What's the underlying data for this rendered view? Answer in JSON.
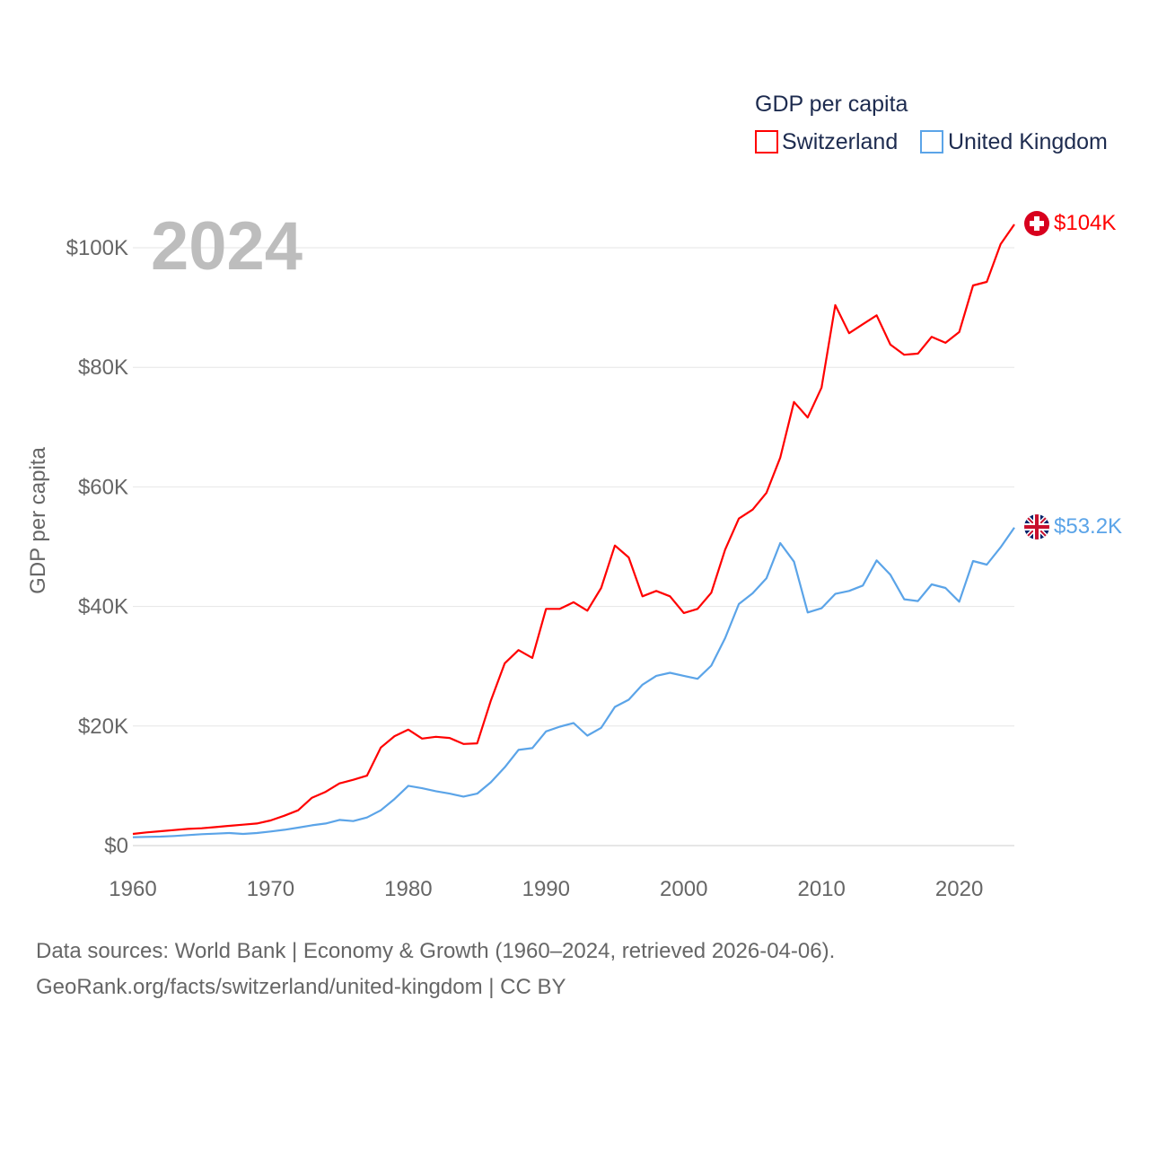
{
  "chart_data": {
    "type": "line",
    "title": "",
    "ylabel": "GDP per capita",
    "xlabel": "",
    "year_label": "2024",
    "legend_title": "GDP per capita",
    "legend_position": "top-right",
    "xlim": [
      1960,
      2024
    ],
    "ylim": [
      0,
      100000
    ],
    "x_ticks": [
      1960,
      1970,
      1980,
      1990,
      2000,
      2010,
      2020
    ],
    "x_tick_labels": [
      "1960",
      "1970",
      "1980",
      "1990",
      "2000",
      "2010",
      "2020"
    ],
    "y_ticks": [
      0,
      20000,
      40000,
      60000,
      80000,
      100000
    ],
    "y_tick_labels": [
      "$0",
      "$20K",
      "$40K",
      "$60K",
      "$80K",
      "$100K"
    ],
    "grid": true,
    "x": [
      1960,
      1961,
      1962,
      1963,
      1964,
      1965,
      1966,
      1967,
      1968,
      1969,
      1970,
      1971,
      1972,
      1973,
      1974,
      1975,
      1976,
      1977,
      1978,
      1979,
      1980,
      1981,
      1982,
      1983,
      1984,
      1985,
      1986,
      1987,
      1988,
      1989,
      1990,
      1991,
      1992,
      1993,
      1994,
      1995,
      1996,
      1997,
      1998,
      1999,
      2000,
      2001,
      2002,
      2003,
      2004,
      2005,
      2006,
      2007,
      2008,
      2009,
      2010,
      2011,
      2012,
      2013,
      2014,
      2015,
      2016,
      2017,
      2018,
      2019,
      2020,
      2021,
      2022,
      2023,
      2024
    ],
    "series": [
      {
        "name": "Switzerland",
        "color": "#ff0000",
        "end_label": "$104K",
        "flag": "swiss-flag",
        "values": [
          1950,
          2200,
          2400,
          2600,
          2800,
          2900,
          3100,
          3300,
          3500,
          3700,
          4200,
          5000,
          5900,
          8000,
          9000,
          10400,
          11000,
          11700,
          16400,
          18300,
          19400,
          17900,
          18200,
          18000,
          17000,
          17100,
          24300,
          30500,
          32700,
          31400,
          39600,
          39600,
          40700,
          39300,
          43100,
          50200,
          48200,
          41700,
          42600,
          41700,
          38900,
          39600,
          42300,
          49500,
          54700,
          56200,
          59000,
          64900,
          74200,
          71600,
          76600,
          90400,
          85700,
          87200,
          88700,
          83800,
          82100,
          82300,
          85100,
          84100,
          85900,
          93700,
          94300,
          100600,
          103900
        ]
      },
      {
        "name": "United Kingdom",
        "color": "#5ba4e8",
        "end_label": "$53.2K",
        "flag": "uk-flag",
        "values": [
          1400,
          1450,
          1500,
          1600,
          1750,
          1900,
          2000,
          2100,
          1950,
          2100,
          2350,
          2650,
          3000,
          3400,
          3700,
          4300,
          4100,
          4700,
          5900,
          7800,
          10000,
          9600,
          9100,
          8700,
          8200,
          8700,
          10600,
          13100,
          16000,
          16300,
          19100,
          19900,
          20500,
          18400,
          19700,
          23200,
          24400,
          26900,
          28400,
          28900,
          28400,
          27900,
          30100,
          34700,
          40400,
          42200,
          44700,
          50600,
          47500,
          39000,
          39700,
          42100,
          42600,
          43500,
          47700,
          45300,
          41200,
          40900,
          43700,
          43100,
          40800,
          47600,
          47000,
          49900,
          53200
        ]
      }
    ]
  },
  "footer": {
    "line1": "Data sources: World Bank | Economy & Growth (1960–2024, retrieved 2026-04-06).",
    "line2": "GeoRank.org/facts/switzerland/united-kingdom | CC BY"
  }
}
